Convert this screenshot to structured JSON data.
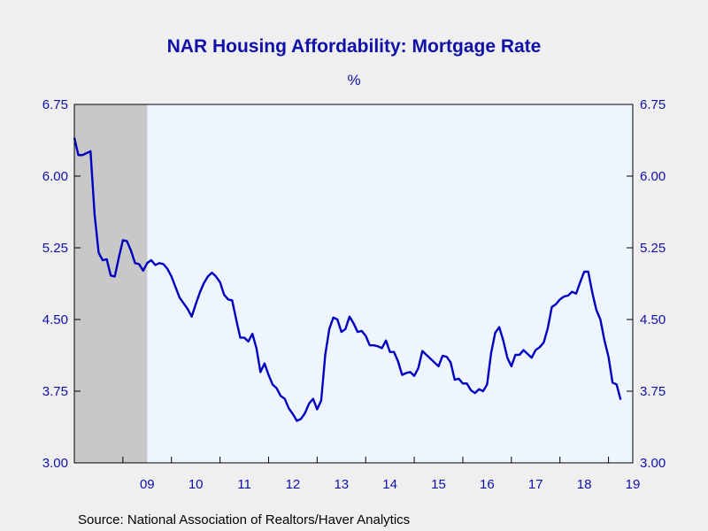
{
  "chart_data": {
    "type": "line",
    "title": "NAR Housing Affordability: Mortgage Rate",
    "unit_label": "%",
    "source": "Source:  National Association of Realtors/Haver Analytics",
    "y_ticks": [
      "6.75",
      "6.00",
      "5.25",
      "4.50",
      "3.75",
      "3.00"
    ],
    "ylim": [
      3.0,
      6.75
    ],
    "x_ticks": [
      "09",
      "10",
      "11",
      "12",
      "13",
      "14",
      "15",
      "16",
      "17",
      "18",
      "19"
    ],
    "xlim": [
      2008.0,
      2019.5
    ],
    "recession_shading": [
      {
        "start": 2008.0,
        "end": 2009.5
      }
    ],
    "colors": {
      "line": "#0000c0",
      "plot_background": "#eef5ff",
      "recession": "#c8c8c8",
      "text": "#1010a8",
      "page_background": "#efefef"
    },
    "series": [
      {
        "values": [
          [
            2008.0,
            6.4
          ],
          [
            2008.083,
            6.22
          ],
          [
            2008.167,
            6.22
          ],
          [
            2008.25,
            6.24
          ],
          [
            2008.333,
            6.26
          ],
          [
            2008.417,
            5.6
          ],
          [
            2008.5,
            5.2
          ],
          [
            2008.583,
            5.12
          ],
          [
            2008.667,
            5.13
          ],
          [
            2008.75,
            4.96
          ],
          [
            2008.833,
            4.95
          ],
          [
            2008.917,
            5.15
          ],
          [
            2009.0,
            5.33
          ],
          [
            2009.083,
            5.32
          ],
          [
            2009.167,
            5.22
          ],
          [
            2009.25,
            5.09
          ],
          [
            2009.333,
            5.08
          ],
          [
            2009.417,
            5.01
          ],
          [
            2009.5,
            5.09
          ],
          [
            2009.583,
            5.12
          ],
          [
            2009.667,
            5.07
          ],
          [
            2009.75,
            5.09
          ],
          [
            2009.833,
            5.08
          ],
          [
            2009.917,
            5.03
          ],
          [
            2010.0,
            4.95
          ],
          [
            2010.083,
            4.84
          ],
          [
            2010.167,
            4.73
          ],
          [
            2010.25,
            4.67
          ],
          [
            2010.333,
            4.61
          ],
          [
            2010.417,
            4.53
          ],
          [
            2010.5,
            4.66
          ],
          [
            2010.583,
            4.78
          ],
          [
            2010.667,
            4.88
          ],
          [
            2010.75,
            4.95
          ],
          [
            2010.833,
            4.99
          ],
          [
            2010.917,
            4.95
          ],
          [
            2011.0,
            4.89
          ],
          [
            2011.083,
            4.76
          ],
          [
            2011.167,
            4.71
          ],
          [
            2011.25,
            4.7
          ],
          [
            2011.333,
            4.5
          ],
          [
            2011.417,
            4.31
          ],
          [
            2011.5,
            4.31
          ],
          [
            2011.583,
            4.27
          ],
          [
            2011.667,
            4.35
          ],
          [
            2011.75,
            4.2
          ],
          [
            2011.833,
            3.95
          ],
          [
            2011.917,
            4.04
          ],
          [
            2012.0,
            3.92
          ],
          [
            2012.083,
            3.82
          ],
          [
            2012.167,
            3.78
          ],
          [
            2012.25,
            3.7
          ],
          [
            2012.333,
            3.67
          ],
          [
            2012.417,
            3.57
          ],
          [
            2012.5,
            3.51
          ],
          [
            2012.583,
            3.44
          ],
          [
            2012.667,
            3.46
          ],
          [
            2012.75,
            3.52
          ],
          [
            2012.833,
            3.62
          ],
          [
            2012.917,
            3.67
          ],
          [
            2013.0,
            3.56
          ],
          [
            2013.083,
            3.65
          ],
          [
            2013.167,
            4.13
          ],
          [
            2013.25,
            4.4
          ],
          [
            2013.333,
            4.52
          ],
          [
            2013.417,
            4.5
          ],
          [
            2013.5,
            4.37
          ],
          [
            2013.583,
            4.4
          ],
          [
            2013.667,
            4.53
          ],
          [
            2013.75,
            4.46
          ],
          [
            2013.833,
            4.37
          ],
          [
            2013.917,
            4.38
          ],
          [
            2014.0,
            4.33
          ],
          [
            2014.083,
            4.23
          ],
          [
            2014.167,
            4.23
          ],
          [
            2014.25,
            4.22
          ],
          [
            2014.333,
            4.2
          ],
          [
            2014.417,
            4.28
          ],
          [
            2014.5,
            4.16
          ],
          [
            2014.583,
            4.16
          ],
          [
            2014.667,
            4.06
          ],
          [
            2014.75,
            3.92
          ],
          [
            2014.833,
            3.94
          ],
          [
            2014.917,
            3.95
          ],
          [
            2015.0,
            3.91
          ],
          [
            2015.083,
            3.99
          ],
          [
            2015.167,
            4.17
          ],
          [
            2015.25,
            4.13
          ],
          [
            2015.333,
            4.09
          ],
          [
            2015.417,
            4.05
          ],
          [
            2015.5,
            4.01
          ],
          [
            2015.583,
            4.12
          ],
          [
            2015.667,
            4.11
          ],
          [
            2015.75,
            4.05
          ],
          [
            2015.833,
            3.87
          ],
          [
            2015.917,
            3.88
          ],
          [
            2016.0,
            3.83
          ],
          [
            2016.083,
            3.83
          ],
          [
            2016.167,
            3.76
          ],
          [
            2016.25,
            3.73
          ],
          [
            2016.333,
            3.77
          ],
          [
            2016.417,
            3.75
          ],
          [
            2016.5,
            3.82
          ],
          [
            2016.583,
            4.15
          ],
          [
            2016.667,
            4.36
          ],
          [
            2016.75,
            4.42
          ],
          [
            2016.833,
            4.28
          ],
          [
            2016.917,
            4.1
          ],
          [
            2017.0,
            4.01
          ],
          [
            2017.083,
            4.13
          ],
          [
            2017.167,
            4.13
          ],
          [
            2017.25,
            4.18
          ],
          [
            2017.333,
            4.14
          ],
          [
            2017.417,
            4.1
          ],
          [
            2017.5,
            4.18
          ],
          [
            2017.583,
            4.21
          ],
          [
            2017.667,
            4.26
          ],
          [
            2017.75,
            4.41
          ],
          [
            2017.833,
            4.63
          ],
          [
            2017.917,
            4.66
          ],
          [
            2018.0,
            4.71
          ],
          [
            2018.083,
            4.74
          ],
          [
            2018.167,
            4.75
          ],
          [
            2018.25,
            4.79
          ],
          [
            2018.333,
            4.77
          ],
          [
            2018.417,
            4.89
          ],
          [
            2018.5,
            5.0
          ],
          [
            2018.583,
            5.0
          ],
          [
            2018.667,
            4.78
          ],
          [
            2018.75,
            4.6
          ],
          [
            2018.833,
            4.5
          ],
          [
            2018.917,
            4.28
          ],
          [
            2019.0,
            4.11
          ],
          [
            2019.083,
            3.84
          ],
          [
            2019.167,
            3.82
          ],
          [
            2019.25,
            3.66
          ]
        ]
      }
    ]
  }
}
